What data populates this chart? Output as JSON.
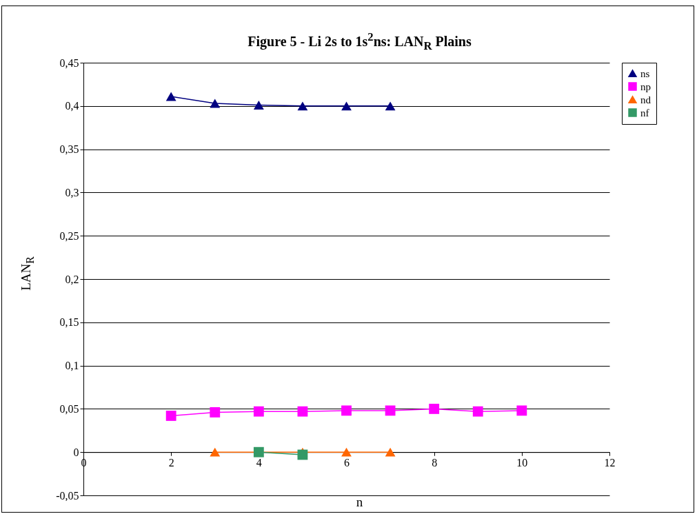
{
  "chart_data": {
    "type": "line",
    "title": "Figure 5 - Li 2s to 1s$^{2}$ns: LAN$_{R}$ Plains",
    "xlabel": "n",
    "ylabel": "LAN$_{R}$",
    "xlim": [
      0,
      12
    ],
    "xticks": [
      0,
      2,
      4,
      6,
      8,
      10,
      12
    ],
    "ylim": [
      -0.05,
      0.45
    ],
    "yticks": [
      {
        "value": -0.05,
        "label": "-0,05"
      },
      {
        "value": 0,
        "label": "0"
      },
      {
        "value": 0.05,
        "label": "0,05"
      },
      {
        "value": 0.1,
        "label": "0,1"
      },
      {
        "value": 0.15,
        "label": "0,15"
      },
      {
        "value": 0.2,
        "label": "0,2"
      },
      {
        "value": 0.25,
        "label": "0,25"
      },
      {
        "value": 0.3,
        "label": "0,3"
      },
      {
        "value": 0.35,
        "label": "0,35"
      },
      {
        "value": 0.4,
        "label": "0,4"
      },
      {
        "value": 0.45,
        "label": "0,45"
      }
    ],
    "grid": "y",
    "legend": "right",
    "series": [
      {
        "name": "ns",
        "color": "#000080",
        "marker": "triangle",
        "x": [
          2,
          3,
          4,
          5,
          6,
          7
        ],
        "values": [
          0.411,
          0.403,
          0.401,
          0.4,
          0.4,
          0.4
        ]
      },
      {
        "name": "np",
        "color": "#ff00ff",
        "marker": "square",
        "x": [
          2,
          3,
          4,
          5,
          6,
          7,
          8,
          9,
          10
        ],
        "values": [
          0.042,
          0.046,
          0.047,
          0.047,
          0.048,
          0.048,
          0.05,
          0.047,
          0.048
        ]
      },
      {
        "name": "nd",
        "color": "#ff6600",
        "marker": "triangle",
        "x": [
          3,
          4,
          5,
          6,
          7
        ],
        "values": [
          0,
          0,
          0,
          0,
          0
        ]
      },
      {
        "name": "nf",
        "color": "#339966",
        "marker": "square",
        "x": [
          4,
          5
        ],
        "values": [
          0,
          -0.003
        ]
      }
    ]
  }
}
